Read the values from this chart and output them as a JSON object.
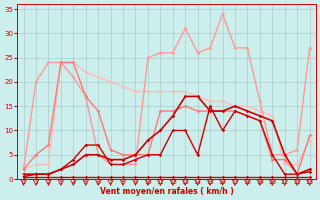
{
  "bg_color": "#cceeec",
  "grid_color": "#aacccc",
  "x_label": "Vent moyen/en rafales ( km/h )",
  "xlim": [
    -0.5,
    23.5
  ],
  "ylim": [
    0,
    36
  ],
  "yticks": [
    0,
    5,
    10,
    15,
    20,
    25,
    30,
    35
  ],
  "xticks": [
    0,
    1,
    2,
    3,
    4,
    5,
    6,
    7,
    8,
    9,
    10,
    11,
    12,
    13,
    14,
    15,
    16,
    17,
    18,
    19,
    20,
    21,
    22,
    23
  ],
  "series": [
    {
      "color": "#ffbbbb",
      "lw": 1.0,
      "marker": "D",
      "ms": 1.8,
      "data_x": [
        0,
        1,
        2,
        3,
        4,
        5,
        6,
        7,
        8,
        9,
        10,
        11,
        12,
        13,
        14,
        15,
        16,
        17,
        18,
        19,
        20,
        21,
        22,
        23
      ],
      "data_y": [
        2,
        3,
        3,
        24,
        24,
        22,
        21,
        20,
        19,
        18,
        18,
        18,
        18,
        18,
        17,
        16,
        16,
        15,
        15,
        14,
        13,
        3,
        3,
        8
      ]
    },
    {
      "color": "#ff9999",
      "lw": 1.0,
      "marker": "D",
      "ms": 1.8,
      "data_x": [
        0,
        1,
        2,
        3,
        4,
        5,
        6,
        7,
        8,
        9,
        10,
        11,
        12,
        13,
        14,
        15,
        16,
        17,
        18,
        19,
        20,
        21,
        22,
        23
      ],
      "data_y": [
        2,
        20,
        24,
        24,
        21,
        17,
        5,
        3,
        3,
        3,
        25,
        26,
        26,
        31,
        26,
        27,
        34,
        27,
        27,
        16,
        5,
        5,
        6,
        27
      ]
    },
    {
      "color": "#ff7777",
      "lw": 1.0,
      "marker": "D",
      "ms": 1.8,
      "data_x": [
        0,
        1,
        2,
        3,
        4,
        5,
        6,
        7,
        8,
        9,
        10,
        11,
        12,
        13,
        14,
        15,
        16,
        17,
        18,
        19,
        20,
        21,
        22,
        23
      ],
      "data_y": [
        2,
        5,
        7,
        24,
        24,
        17,
        14,
        6,
        5,
        5,
        5,
        14,
        14,
        15,
        14,
        14,
        14,
        14,
        13,
        12,
        4,
        4,
        1,
        9
      ]
    },
    {
      "color": "#cc0000",
      "lw": 1.2,
      "marker": "D",
      "ms": 1.8,
      "data_x": [
        0,
        1,
        2,
        3,
        4,
        5,
        6,
        7,
        8,
        9,
        10,
        11,
        12,
        13,
        14,
        15,
        16,
        17,
        18,
        19,
        20,
        21,
        22,
        23
      ],
      "data_y": [
        1,
        1,
        1,
        2,
        3,
        5,
        5,
        4,
        4,
        5,
        8,
        10,
        13,
        17,
        17,
        14,
        14,
        15,
        14,
        13,
        12,
        5,
        1,
        2
      ]
    },
    {
      "color": "#cc0000",
      "lw": 1.0,
      "marker": "D",
      "ms": 1.8,
      "data_x": [
        0,
        1,
        2,
        3,
        4,
        5,
        6,
        7,
        8,
        9,
        10,
        11,
        12,
        13,
        14,
        15,
        16,
        17,
        18,
        19,
        20,
        21,
        22,
        23
      ],
      "data_y": [
        0.5,
        1,
        1,
        2,
        4,
        7,
        7,
        3,
        3,
        4,
        5,
        5,
        10,
        10,
        5,
        15,
        10,
        14,
        13,
        12,
        5,
        1,
        1,
        1.5
      ]
    },
    {
      "color": "#cc0000",
      "lw": 1.0,
      "marker": "D",
      "ms": 1.8,
      "data_x": [
        0,
        1,
        2,
        3,
        4,
        5,
        6,
        7,
        8,
        9,
        10,
        11,
        12,
        13,
        14,
        15,
        16,
        17,
        18,
        19,
        20,
        21,
        22,
        23
      ],
      "data_y": [
        0.5,
        0.5,
        0.5,
        0.5,
        0.5,
        0.5,
        0.5,
        0.5,
        0.5,
        0.5,
        0.5,
        0.5,
        0.5,
        0.5,
        0.5,
        0.5,
        0.5,
        0.5,
        0.5,
        0.5,
        0.5,
        0.5,
        0.5,
        0.5
      ]
    }
  ]
}
